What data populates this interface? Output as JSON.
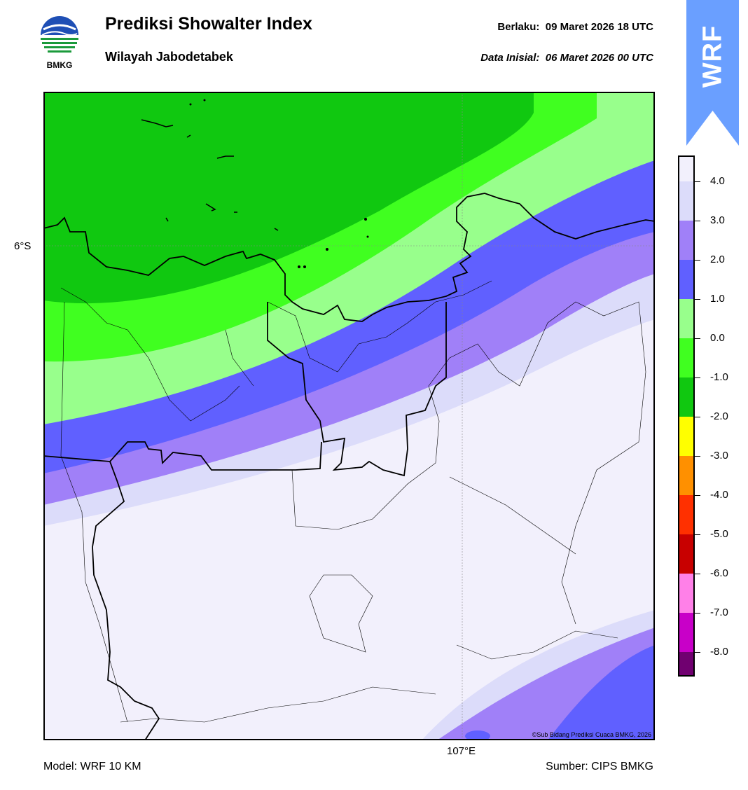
{
  "header": {
    "title": "Prediksi Showalter Index",
    "subtitle": "Wilayah Jabodetabek",
    "valid_label": "Berlaku:",
    "valid_value": "09 Maret 2026 18 UTC",
    "init_label": "Data Inisial:",
    "init_value": "06 Maret 2026 00 UTC"
  },
  "logo": {
    "text": "BMKG"
  },
  "banner": {
    "text": "WRF",
    "color": "#6a9fff"
  },
  "map": {
    "lat_label": "6°S",
    "lon_label": "107°E",
    "copyright": "©Sub Bidang Prediksi Cuaca BMKG, 2026"
  },
  "footer": {
    "model": "Model: WRF 10 KM",
    "source": "Sumber: CIPS BMKG"
  },
  "colorbar": {
    "ticks": [
      "4.0",
      "3.0",
      "2.0",
      "1.0",
      "0.0",
      "-1.0",
      "-2.0",
      "-3.0",
      "-4.0",
      "-5.0",
      "-6.0",
      "-7.0",
      "-8.0"
    ],
    "colors": [
      "#f2f0fc",
      "#dcdcfa",
      "#a080f8",
      "#6060ff",
      "#98ff8c",
      "#40ff20",
      "#10c810",
      "#ffff00",
      "#ff9000",
      "#ff3000",
      "#c80000",
      "#ff80e8",
      "#c800c8",
      "#700070"
    ]
  }
}
